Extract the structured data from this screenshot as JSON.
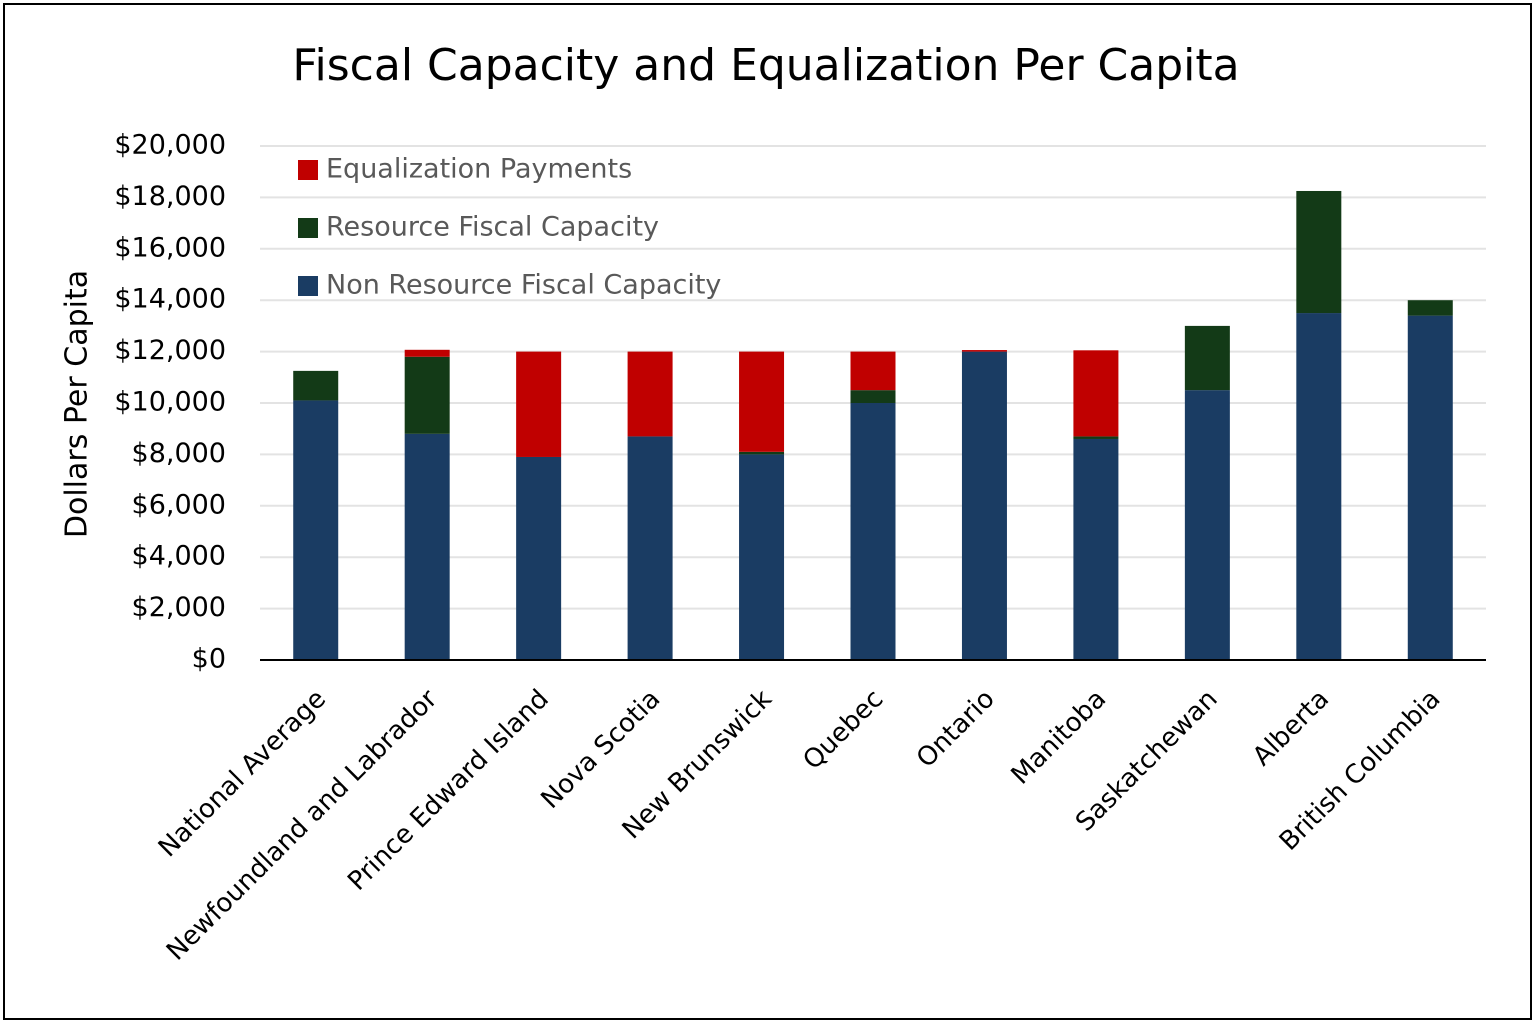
{
  "chart_data": {
    "type": "stacked-bar",
    "title": "Fiscal Capacity and Equalization Per Capita",
    "y_label": "Dollars Per Capita",
    "categories": [
      "National Average",
      "Newfoundland and Labrador",
      "Prince Edward Island",
      "Nova Scotia",
      "New Brunswick",
      "Quebec",
      "Ontario",
      "Manitoba",
      "Saskatchewan",
      "Alberta",
      "British Columbia"
    ],
    "series": [
      {
        "name": "Non Resource Fiscal Capacity",
        "color": "#1a3c63",
        "values": [
          10100,
          8800,
          7900,
          8700,
          8000,
          10000,
          12000,
          8600,
          10500,
          13500,
          13400
        ]
      },
      {
        "name": "Resource Fiscal Capacity",
        "color": "#133a17",
        "values": [
          1150,
          3000,
          0,
          0,
          100,
          500,
          0,
          100,
          2500,
          4750,
          600
        ]
      },
      {
        "name": "Equalization Payments",
        "color": "#c00000",
        "values": [
          0,
          270,
          4100,
          3300,
          3900,
          1500,
          60,
          3350,
          0,
          0,
          0
        ]
      }
    ],
    "ylim": [
      0,
      20000
    ],
    "yticks": [
      {
        "value": 0,
        "label": "$0"
      },
      {
        "value": 2000,
        "label": "$2,000"
      },
      {
        "value": 4000,
        "label": "$4,000"
      },
      {
        "value": 6000,
        "label": "$6,000"
      },
      {
        "value": 8000,
        "label": "$8,000"
      },
      {
        "value": 10000,
        "label": "$10,000"
      },
      {
        "value": 12000,
        "label": "$12,000"
      },
      {
        "value": 14000,
        "label": "$14,000"
      },
      {
        "value": 16000,
        "label": "$16,000"
      },
      {
        "value": 18000,
        "label": "$18,000"
      },
      {
        "value": 20000,
        "label": "$20,000"
      }
    ],
    "grid": true,
    "legend": "top-left"
  }
}
